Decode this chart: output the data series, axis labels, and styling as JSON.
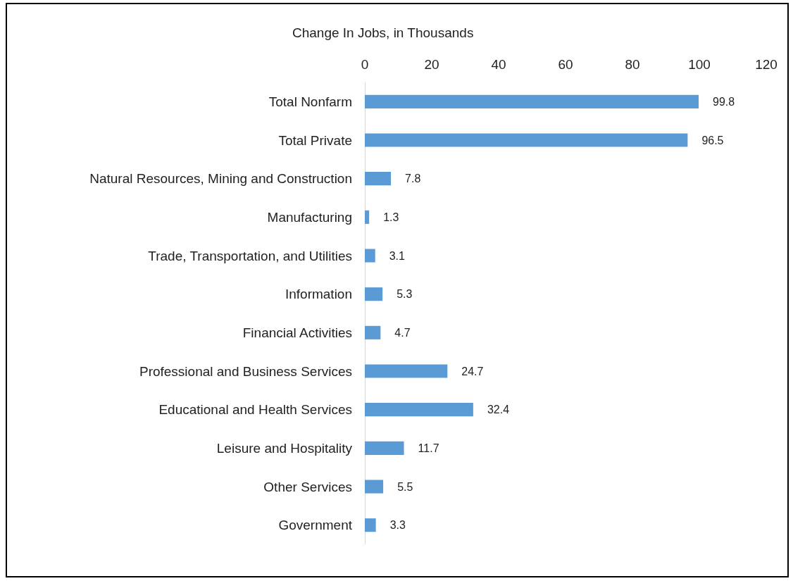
{
  "chart_data": {
    "type": "bar",
    "orientation": "horizontal",
    "xlabel": "Change In Jobs, in Thousands",
    "categories": [
      "Total Nonfarm",
      "Total Private",
      "Natural Resources, Mining and Construction",
      "Manufacturing",
      "Trade, Transportation, and Utilities",
      "Information",
      "Financial Activities",
      "Professional and Business Services",
      "Educational and Health Services",
      "Leisure and Hospitality",
      "Other Services",
      "Government"
    ],
    "values": [
      99.8,
      96.5,
      7.8,
      1.3,
      3.1,
      5.3,
      4.7,
      24.7,
      32.4,
      11.7,
      5.5,
      3.3
    ],
    "color": "#5b9bd5",
    "xlim": [
      0,
      120
    ],
    "xticks": [
      0,
      20,
      40,
      60,
      80,
      100,
      120
    ],
    "grid": false,
    "data_labels": true
  }
}
